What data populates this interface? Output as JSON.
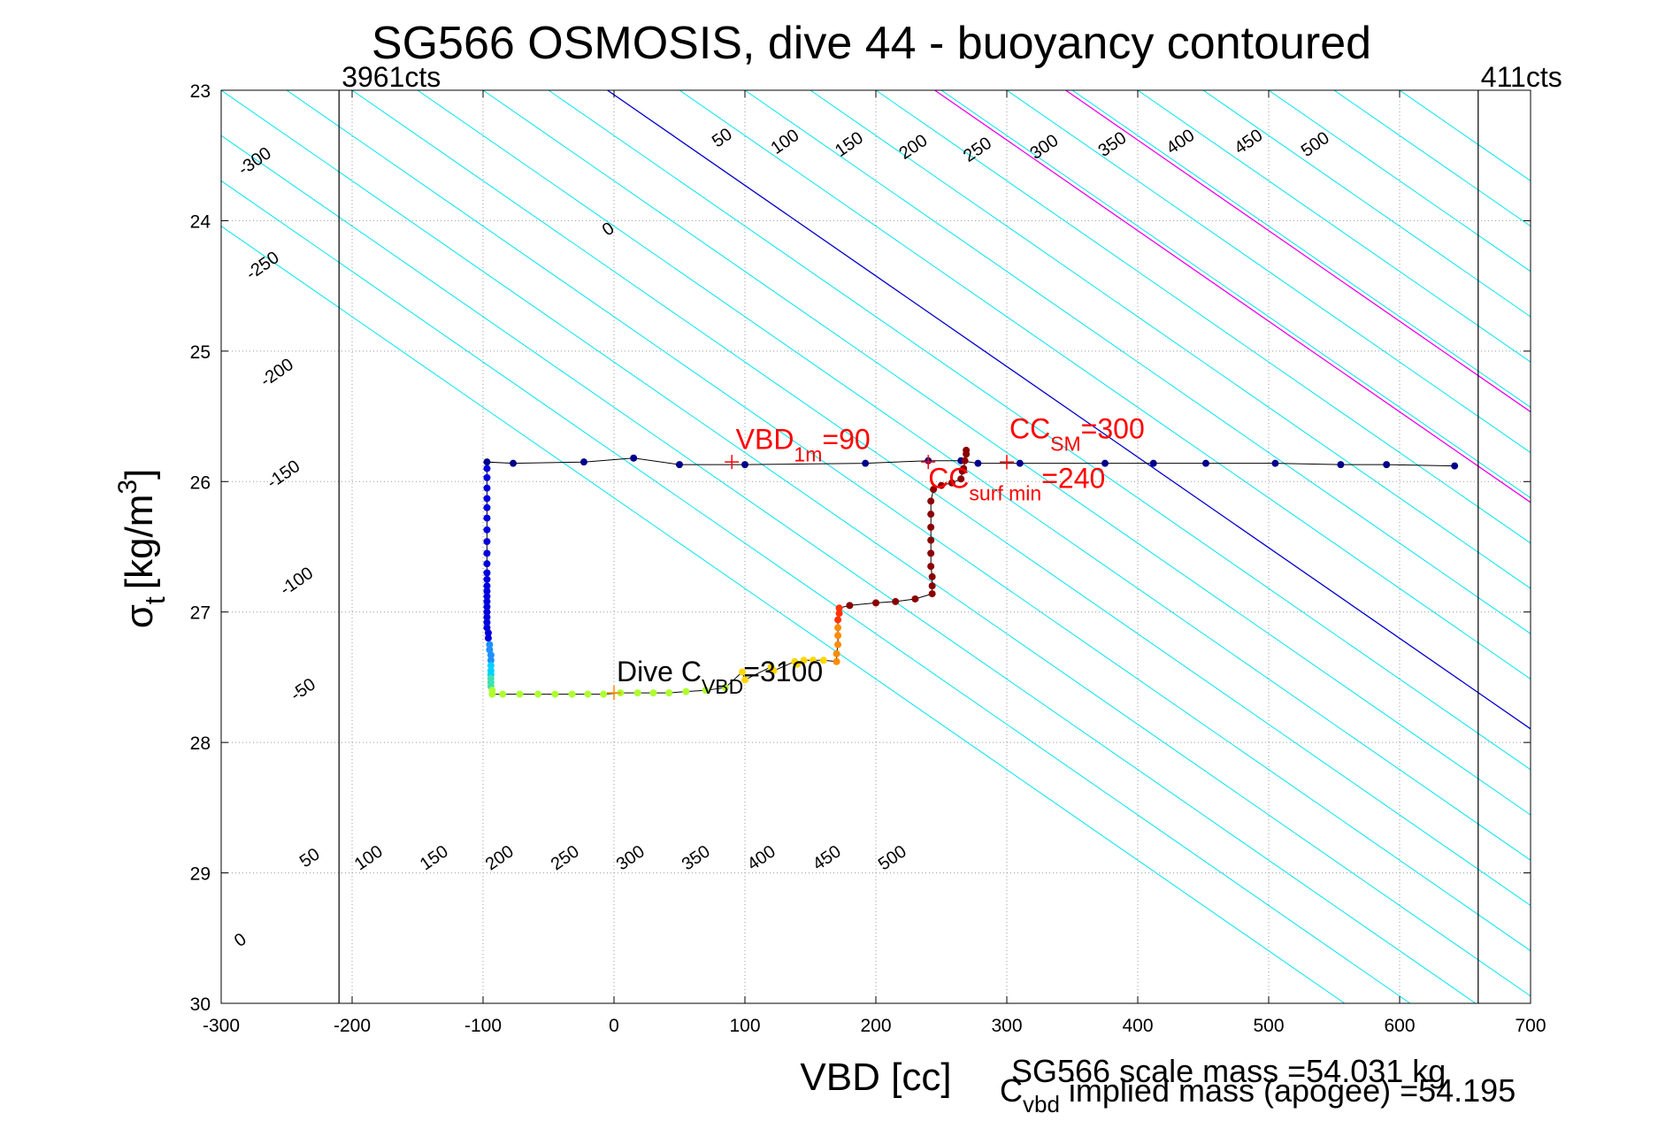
{
  "chart_data": {
    "type": "scatter",
    "title": "SG566 OSMOSIS, dive 44 - buoyancy contoured",
    "xlabel": "VBD [cc]",
    "ylabel_main": "σ",
    "ylabel_sub": "t",
    "ylabel_unit": "[kg/m",
    "ylabel_sup": "3",
    "ylabel_end": "]",
    "xlim": [
      -300,
      700
    ],
    "ylim": [
      23,
      30
    ],
    "y_reversed": true,
    "grid": true,
    "x_ticks": [
      "-300",
      "-200",
      "-100",
      "0",
      "100",
      "200",
      "300",
      "400",
      "500",
      "600",
      "700"
    ],
    "y_ticks": [
      "23",
      "24",
      "25",
      "26",
      "27",
      "28",
      "29",
      "30"
    ],
    "limit_lines": [
      {
        "x": -210,
        "label": "3961cts"
      },
      {
        "x": 660,
        "label": "411cts"
      }
    ],
    "contours": {
      "line_equation": "x = x0 + 144 * (sigma - 23)",
      "cyan_offsets": [
        -450,
        -400,
        -350,
        -300,
        -250,
        -200,
        -150,
        -100,
        -50,
        50,
        100,
        150,
        200,
        250,
        300,
        350,
        400,
        450,
        500,
        550,
        600
      ],
      "blue_offsets": [
        -5
      ],
      "magenta_offsets": [
        245,
        345
      ],
      "colors": {
        "cyan": "#00e5ee",
        "blue": "#0000cc",
        "magenta": "#ee00ee"
      },
      "labels_upper": [
        {
          "text": "-300",
          "x": -272,
          "y": 23.58
        },
        {
          "text": "-250",
          "x": -266,
          "y": 24.38
        },
        {
          "text": "-200",
          "x": -255,
          "y": 25.2
        },
        {
          "text": "-150",
          "x": -250,
          "y": 25.98
        },
        {
          "text": "-100",
          "x": -240,
          "y": 26.8
        },
        {
          "text": "-50",
          "x": -235,
          "y": 27.63
        },
        {
          "text": "0",
          "x": -2,
          "y": 24.1
        },
        {
          "text": "50",
          "x": 85,
          "y": 23.4
        },
        {
          "text": "100",
          "x": 133,
          "y": 23.43
        },
        {
          "text": "150",
          "x": 182,
          "y": 23.45
        },
        {
          "text": "200",
          "x": 231,
          "y": 23.47
        },
        {
          "text": "250",
          "x": 280,
          "y": 23.49
        },
        {
          "text": "300",
          "x": 331,
          "y": 23.47
        },
        {
          "text": "350",
          "x": 383,
          "y": 23.45
        },
        {
          "text": "400",
          "x": 435,
          "y": 23.43
        },
        {
          "text": "450",
          "x": 487,
          "y": 23.43
        },
        {
          "text": "500",
          "x": 538,
          "y": 23.45
        }
      ],
      "labels_lower": [
        {
          "text": "0",
          "x": -283,
          "y": 29.55
        },
        {
          "text": "50",
          "x": -230,
          "y": 28.92
        },
        {
          "text": "100",
          "x": -185,
          "y": 28.92
        },
        {
          "text": "150",
          "x": -135,
          "y": 28.92
        },
        {
          "text": "200",
          "x": -85,
          "y": 28.92
        },
        {
          "text": "250",
          "x": -35,
          "y": 28.92
        },
        {
          "text": "300",
          "x": 15,
          "y": 28.92
        },
        {
          "text": "350",
          "x": 65,
          "y": 28.92
        },
        {
          "text": "400",
          "x": 115,
          "y": 28.92
        },
        {
          "text": "450",
          "x": 165,
          "y": 28.92
        },
        {
          "text": "500",
          "x": 215,
          "y": 28.92
        }
      ]
    },
    "series": [
      {
        "marker_color": "#00008b",
        "points": [
          [
            -97,
            25.85
          ],
          [
            -77,
            25.86
          ],
          [
            -23,
            25.85
          ],
          [
            15,
            25.82
          ],
          [
            50,
            25.87
          ],
          [
            100,
            25.87
          ],
          [
            192,
            25.86
          ],
          [
            240,
            25.84
          ],
          [
            265,
            25.84
          ],
          [
            278,
            25.86
          ],
          [
            310,
            25.86
          ],
          [
            375,
            25.86
          ],
          [
            412,
            25.86
          ],
          [
            452,
            25.86
          ],
          [
            505,
            25.86
          ],
          [
            555,
            25.87
          ],
          [
            590,
            25.87
          ],
          [
            642,
            25.88
          ]
        ]
      },
      {
        "marker_color": "#0000dd",
        "points": [
          [
            -97,
            25.9
          ],
          [
            -97,
            25.97
          ],
          [
            -97,
            26.05
          ],
          [
            -97,
            26.13
          ],
          [
            -97,
            26.2
          ],
          [
            -97,
            26.28
          ],
          [
            -97,
            26.37
          ],
          [
            -97,
            26.46
          ],
          [
            -97,
            26.55
          ],
          [
            -97,
            26.63
          ],
          [
            -97,
            26.7
          ],
          [
            -97,
            26.75
          ],
          [
            -97,
            26.8
          ],
          [
            -97,
            26.84
          ],
          [
            -97,
            26.88
          ],
          [
            -97,
            26.92
          ],
          [
            -97,
            26.96
          ],
          [
            -97,
            27.0
          ],
          [
            -97,
            27.04
          ],
          [
            -97,
            27.08
          ],
          [
            -97,
            27.12
          ],
          [
            -96,
            27.16
          ],
          [
            -96,
            27.2
          ]
        ]
      },
      {
        "marker_color": "#1e90ff",
        "points": [
          [
            -95,
            27.25
          ],
          [
            -95,
            27.29
          ],
          [
            -94,
            27.33
          ],
          [
            -94,
            27.37
          ]
        ]
      },
      {
        "marker_color": "#00d0ff",
        "points": [
          [
            -94,
            27.41
          ],
          [
            -94,
            27.45
          ],
          [
            -94,
            27.48
          ]
        ]
      },
      {
        "marker_color": "#40e0b0",
        "points": [
          [
            -94,
            27.51
          ],
          [
            -94,
            27.54
          ],
          [
            -94,
            27.57
          ]
        ]
      },
      {
        "marker_color": "#adff2f",
        "points": [
          [
            -93,
            27.6
          ],
          [
            -93,
            27.63
          ],
          [
            -85,
            27.63
          ],
          [
            -72,
            27.63
          ],
          [
            -58,
            27.63
          ],
          [
            -45,
            27.63
          ],
          [
            -32,
            27.63
          ],
          [
            -20,
            27.63
          ],
          [
            -8,
            27.63
          ],
          [
            5,
            27.62
          ],
          [
            18,
            27.62
          ],
          [
            30,
            27.62
          ],
          [
            42,
            27.62
          ],
          [
            55,
            27.61
          ],
          [
            70,
            27.6
          ],
          [
            85,
            27.58
          ]
        ]
      },
      {
        "marker_color": "#ffd700",
        "points": [
          [
            98,
            27.46
          ],
          [
            100,
            27.52
          ],
          [
            120,
            27.42
          ],
          [
            122,
            27.45
          ],
          [
            138,
            27.38
          ],
          [
            140,
            27.4
          ],
          [
            145,
            27.37
          ],
          [
            152,
            27.37
          ],
          [
            160,
            27.37
          ]
        ]
      },
      {
        "marker_color": "#ff8c00",
        "points": [
          [
            170,
            27.38
          ],
          [
            170,
            27.32
          ],
          [
            171,
            27.25
          ],
          [
            171,
            27.18
          ],
          [
            171,
            27.12
          ]
        ]
      },
      {
        "marker_color": "#ff3300",
        "points": [
          [
            171,
            27.06
          ],
          [
            172,
            27.01
          ],
          [
            172,
            26.97
          ]
        ]
      },
      {
        "marker_color": "#8b0000",
        "points": [
          [
            180,
            26.95
          ],
          [
            200,
            26.93
          ],
          [
            215,
            26.92
          ],
          [
            230,
            26.9
          ],
          [
            243,
            26.86
          ],
          [
            243,
            26.8
          ],
          [
            243,
            26.73
          ],
          [
            242,
            26.65
          ],
          [
            242,
            26.55
          ],
          [
            242,
            26.45
          ],
          [
            242,
            26.35
          ],
          [
            242,
            26.25
          ],
          [
            242,
            26.15
          ],
          [
            244,
            26.06
          ],
          [
            250,
            26.03
          ],
          [
            258,
            26.01
          ],
          [
            265,
            25.98
          ],
          [
            266,
            25.92
          ],
          [
            267,
            25.9
          ],
          [
            268,
            25.84
          ],
          [
            269,
            25.79
          ],
          [
            269,
            25.76
          ]
        ]
      }
    ],
    "markers": [
      {
        "x": 90,
        "y": 25.85,
        "color": "#ff0000"
      },
      {
        "x": 240,
        "y": 25.85,
        "color": "#ff0000"
      },
      {
        "x": 300,
        "y": 25.85,
        "color": "#ff0000"
      },
      {
        "x": 0,
        "y": 27.62,
        "color": "#ff8800"
      }
    ],
    "annotations": [
      {
        "main": "VBD",
        "sub": "1m",
        "rest": "=90",
        "color": "#ff0000",
        "x": 93,
        "y": 25.75,
        "size": 32
      },
      {
        "main": "CC",
        "sub": "SM",
        "rest": "=300",
        "color": "#ff0000",
        "x": 302,
        "y": 25.67,
        "size": 32
      },
      {
        "main": "CC",
        "sub": "surf min",
        "rest": "=240",
        "color": "#ff0000",
        "x": 240,
        "y": 26.05,
        "size": 32
      },
      {
        "main": "Dive C",
        "sub": "VBD",
        "rest": "=3100",
        "color": "#000000",
        "x": 2,
        "y": 27.53,
        "size": 32
      }
    ],
    "footer": {
      "scale_mass": "SG566 scale mass =54.031 kg",
      "cvbd_main": "C",
      "cvbd_sub": "vbd",
      "cvbd_rest": " implied mass (apogee) =54.195"
    }
  }
}
